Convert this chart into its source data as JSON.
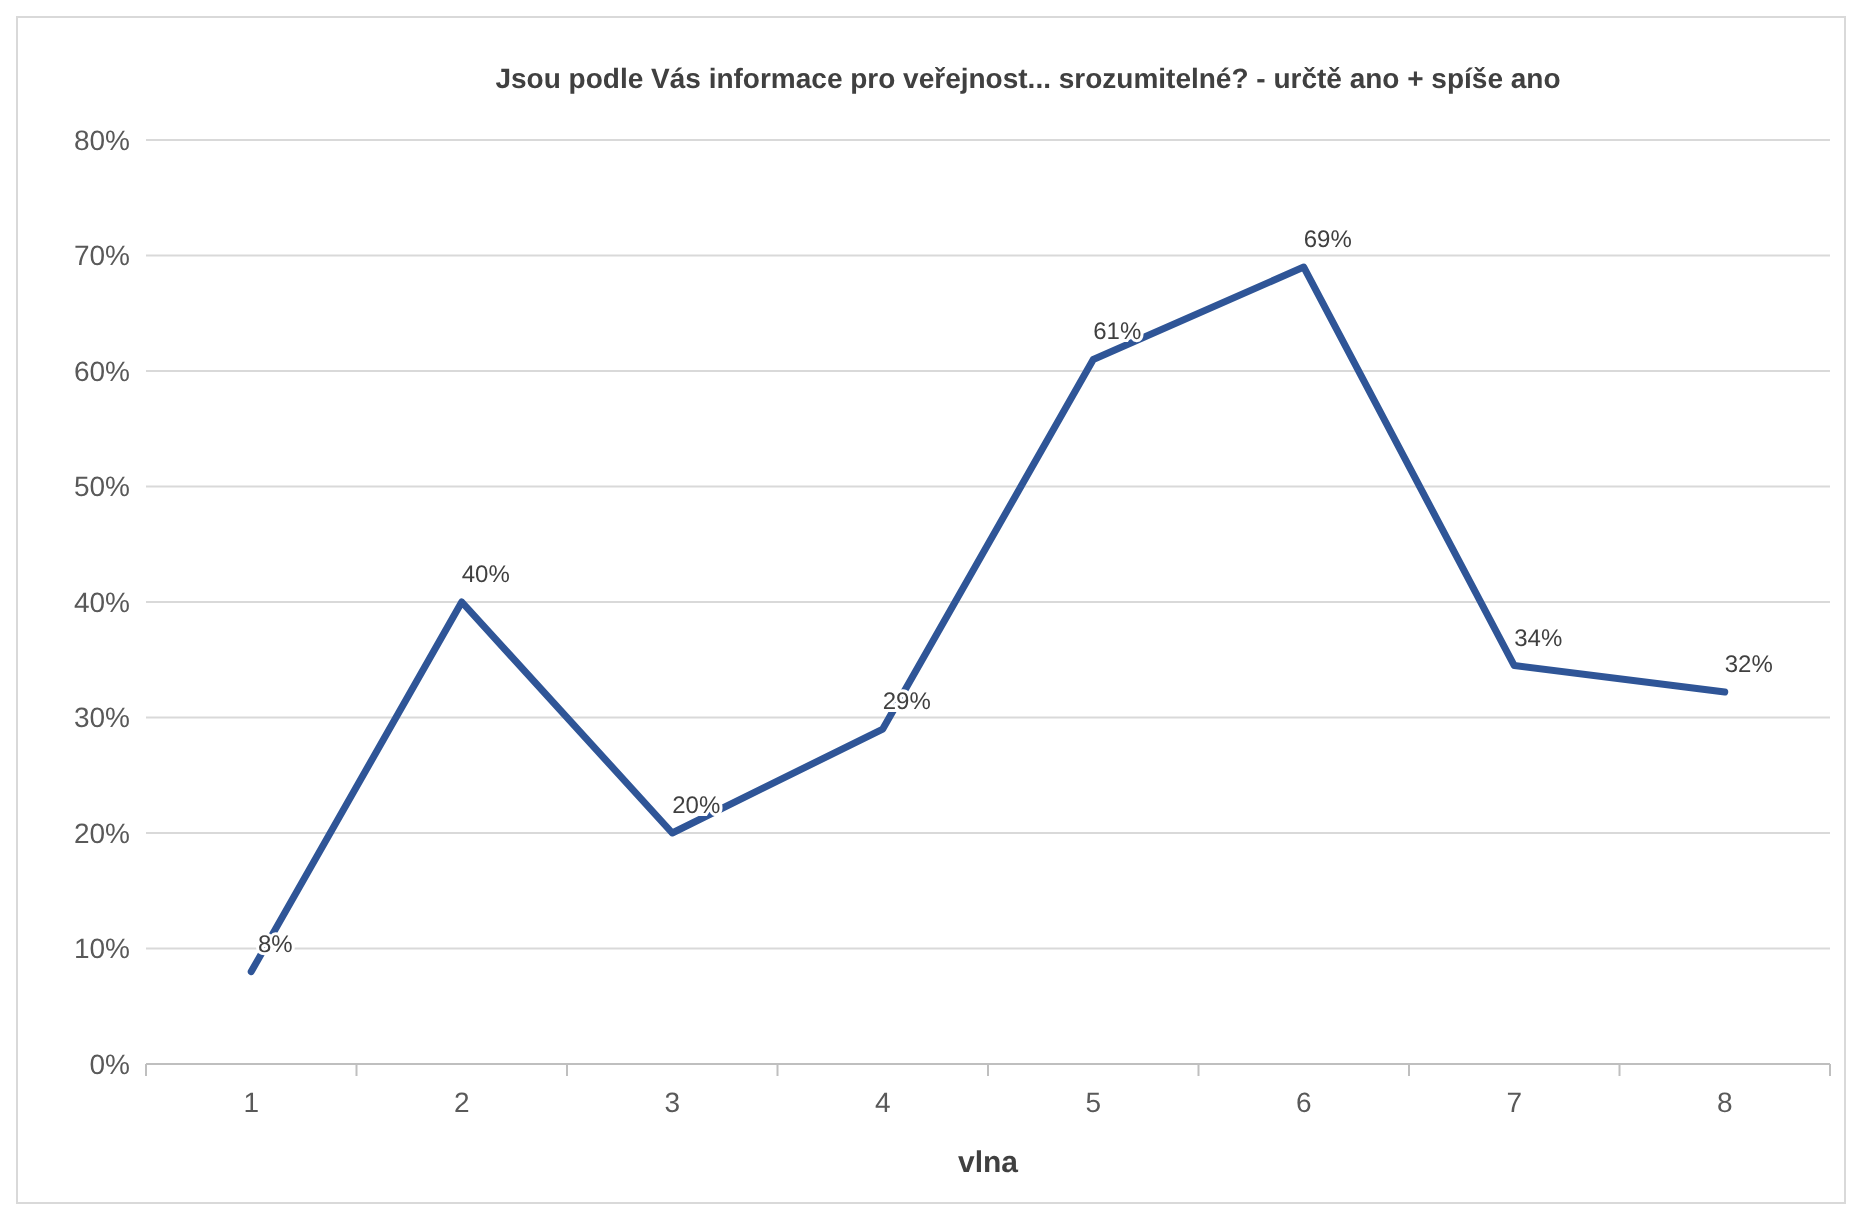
{
  "chart_data": {
    "type": "line",
    "title": "Jsou podle Vás informace pro veřejnost... srozumitelné? - určtě ano + spíše ano",
    "xlabel": "vlna",
    "categories": [
      "1",
      "2",
      "3",
      "4",
      "5",
      "6",
      "7",
      "8"
    ],
    "series": [
      {
        "color": "#2f5597",
        "values": [
          8,
          40,
          20,
          29,
          61,
          69,
          34.5,
          32.2
        ],
        "value_labels": [
          "8%",
          "40%",
          "20%",
          "29%",
          "61%",
          "69%",
          "34%",
          "32%"
        ]
      }
    ],
    "ylim": [
      0,
      80
    ],
    "yticks": [
      {
        "value": 0,
        "label": "0%"
      },
      {
        "value": 10,
        "label": "10%"
      },
      {
        "value": 20,
        "label": "20%"
      },
      {
        "value": 30,
        "label": "30%"
      },
      {
        "value": 40,
        "label": "40%"
      },
      {
        "value": 50,
        "label": "50%"
      },
      {
        "value": 60,
        "label": "60%"
      },
      {
        "value": 70,
        "label": "70%"
      },
      {
        "value": 80,
        "label": "80%"
      }
    ],
    "grid": "y",
    "marker": "none",
    "line_style": "solid"
  }
}
